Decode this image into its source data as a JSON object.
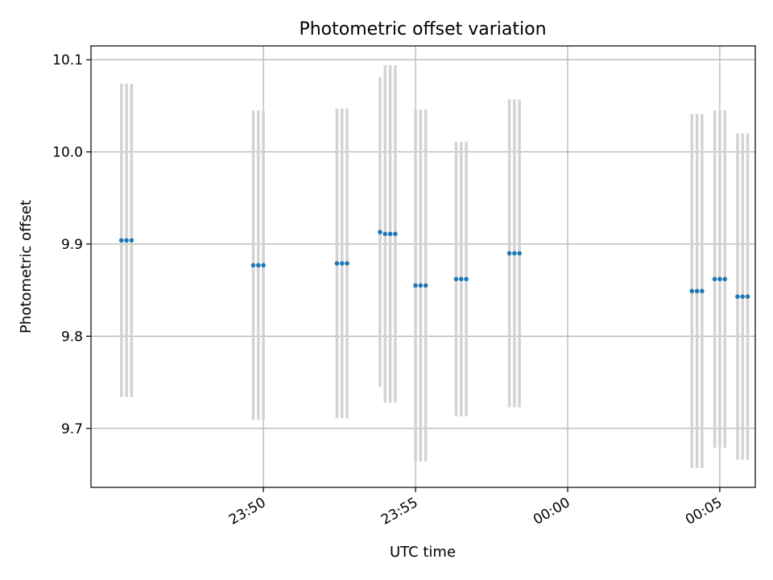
{
  "chart_data": {
    "type": "scatter",
    "title": "Photometric offset variation",
    "xlabel": "UTC time",
    "ylabel": "Photometric offset",
    "x_axis_kind": "time",
    "x_ticks": [
      "23:50",
      "23:55",
      "00:00",
      "00:05"
    ],
    "y_ticks": [
      "9.7",
      "9.8",
      "9.9",
      "10.0",
      "10.1"
    ],
    "xlim": [
      "23:44:20",
      "00:06:10"
    ],
    "ylim": [
      9.636,
      10.115
    ],
    "grid": true,
    "marker_color": "#1f77b4",
    "errorbar_color": "#d3d3d3",
    "points": [
      {
        "x": "23:45:20",
        "y": 9.904,
        "err": 0.17
      },
      {
        "x": "23:45:30",
        "y": 9.904,
        "err": 0.17
      },
      {
        "x": "23:45:40",
        "y": 9.904,
        "err": 0.17
      },
      {
        "x": "23:49:40",
        "y": 9.877,
        "err": 0.168
      },
      {
        "x": "23:49:50",
        "y": 9.877,
        "err": 0.168
      },
      {
        "x": "23:50:00",
        "y": 9.877,
        "err": 0.168
      },
      {
        "x": "23:52:25",
        "y": 9.879,
        "err": 0.168
      },
      {
        "x": "23:52:35",
        "y": 9.879,
        "err": 0.168
      },
      {
        "x": "23:52:45",
        "y": 9.879,
        "err": 0.168
      },
      {
        "x": "23:53:50",
        "y": 9.913,
        "err": 0.168
      },
      {
        "x": "23:54:00",
        "y": 9.911,
        "err": 0.183
      },
      {
        "x": "23:54:10",
        "y": 9.911,
        "err": 0.183
      },
      {
        "x": "23:54:20",
        "y": 9.911,
        "err": 0.183
      },
      {
        "x": "23:55:00",
        "y": 9.855,
        "err": 0.191
      },
      {
        "x": "23:55:10",
        "y": 9.855,
        "err": 0.191
      },
      {
        "x": "23:55:20",
        "y": 9.855,
        "err": 0.191
      },
      {
        "x": "23:56:20",
        "y": 9.862,
        "err": 0.149
      },
      {
        "x": "23:56:30",
        "y": 9.862,
        "err": 0.149
      },
      {
        "x": "23:56:40",
        "y": 9.862,
        "err": 0.149
      },
      {
        "x": "23:58:05",
        "y": 9.89,
        "err": 0.167
      },
      {
        "x": "23:58:15",
        "y": 9.89,
        "err": 0.167
      },
      {
        "x": "23:58:25",
        "y": 9.89,
        "err": 0.167
      },
      {
        "x": "00:04:05",
        "y": 9.849,
        "err": 0.192
      },
      {
        "x": "00:04:15",
        "y": 9.849,
        "err": 0.192
      },
      {
        "x": "00:04:25",
        "y": 9.849,
        "err": 0.192
      },
      {
        "x": "00:04:50",
        "y": 9.862,
        "err": 0.183
      },
      {
        "x": "00:05:00",
        "y": 9.862,
        "err": 0.183
      },
      {
        "x": "00:05:10",
        "y": 9.862,
        "err": 0.183
      },
      {
        "x": "00:05:35",
        "y": 9.843,
        "err": 0.177
      },
      {
        "x": "00:05:45",
        "y": 9.843,
        "err": 0.177
      },
      {
        "x": "00:05:55",
        "y": 9.843,
        "err": 0.177
      }
    ]
  }
}
